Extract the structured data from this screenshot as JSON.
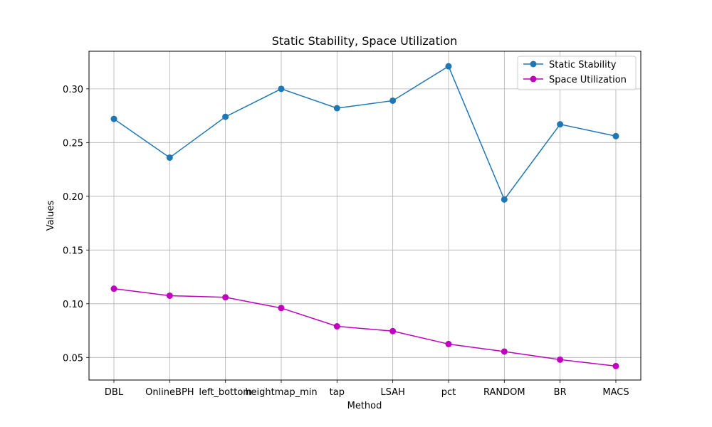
{
  "chart_data": {
    "type": "line",
    "title": "Static Stability, Space Utilization",
    "xlabel": "Method",
    "ylabel": "Values",
    "categories": [
      "DBL",
      "OnlineBPH",
      "left_bottom",
      "heightmap_min",
      "tap",
      "LSAH",
      "pct",
      "RANDOM",
      "BR",
      "MACS"
    ],
    "ylim": [
      0.029,
      0.335
    ],
    "yticks": [
      "0.05",
      "0.10",
      "0.15",
      "0.20",
      "0.25",
      "0.30"
    ],
    "ytick_values": [
      0.05,
      0.1,
      0.15,
      0.2,
      0.25,
      0.3
    ],
    "grid": true,
    "legend_position": "top-right",
    "series": [
      {
        "name": "Static Stability",
        "color": "#1f77b4",
        "marker": "circle",
        "values": [
          0.272,
          0.236,
          0.274,
          0.3,
          0.282,
          0.289,
          0.321,
          0.197,
          0.267,
          0.256
        ]
      },
      {
        "name": "Space Utilization",
        "color": "#bf00bf",
        "marker": "circle",
        "values": [
          0.114,
          0.1075,
          0.106,
          0.096,
          0.079,
          0.0745,
          0.0625,
          0.0555,
          0.048,
          0.042
        ]
      }
    ]
  }
}
